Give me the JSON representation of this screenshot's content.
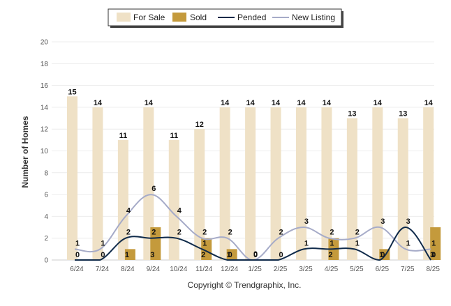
{
  "chart_data": {
    "type": "bar",
    "title": "",
    "xlabel": "",
    "ylabel": "Number of Homes",
    "ylim": [
      0,
      20
    ],
    "yticks": [
      0,
      2,
      4,
      6,
      8,
      10,
      12,
      14,
      16,
      18,
      20
    ],
    "grid": true,
    "legend_position": "top-center",
    "categories": [
      "6/24",
      "7/24",
      "8/24",
      "9/24",
      "10/24",
      "11/24",
      "12/24",
      "1/25",
      "2/25",
      "3/25",
      "4/25",
      "5/25",
      "6/25",
      "7/25",
      "8/25"
    ],
    "series": [
      {
        "name": "For Sale",
        "kind": "bar",
        "color": "#efe1c6",
        "values": [
          15,
          14,
          11,
          14,
          11,
          12,
          14,
          14,
          14,
          14,
          14,
          13,
          14,
          13,
          14
        ]
      },
      {
        "name": "Sold",
        "kind": "bar",
        "color": "#c49a3c",
        "values": [
          0,
          0,
          1,
          3,
          0,
          2,
          1,
          0,
          0,
          0,
          2,
          0,
          1,
          0,
          3
        ]
      },
      {
        "name": "Pended",
        "kind": "line",
        "color": "#0f2a4a",
        "values": [
          0,
          0,
          2,
          2,
          2,
          1,
          0,
          0,
          0,
          1,
          1,
          1,
          0,
          3,
          0
        ]
      },
      {
        "name": "New Listing",
        "kind": "line",
        "color": "#a6abc8",
        "values": [
          1,
          1,
          4,
          6,
          4,
          2,
          2,
          0,
          2,
          3,
          2,
          2,
          3,
          1,
          1
        ]
      }
    ]
  },
  "footer": {
    "copyright": "Copyright © Trendgraphix, Inc."
  }
}
